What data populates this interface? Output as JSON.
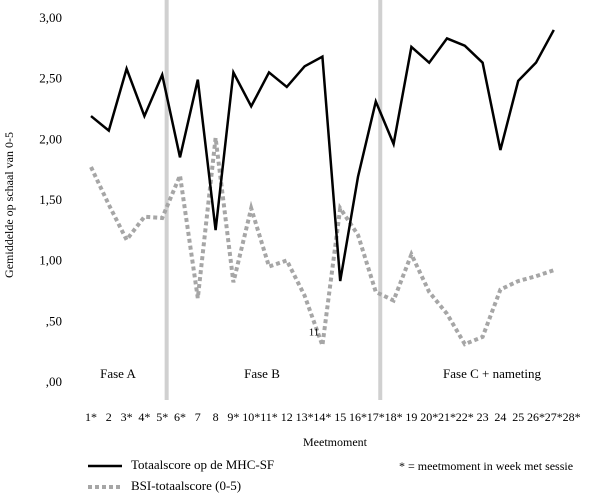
{
  "chart_data": {
    "type": "line",
    "x_label": "Meetmoment",
    "y_label": "Gemiddelde op schaal van 0-5",
    "categories": [
      "1*",
      "2",
      "3*",
      "4*",
      "5*",
      "6*",
      "7",
      "8",
      "9*",
      "10*",
      "11*",
      "12",
      "13*",
      "14*",
      "15",
      "16*",
      "17*",
      "18*",
      "19",
      "20*",
      "21*",
      "22*",
      "23",
      "24",
      "25",
      "26*",
      "27*",
      "28*"
    ],
    "series": [
      {
        "name": "Totaalscore op de MHC-SF",
        "color": "#000000",
        "dashed": false,
        "values": [
          2.2,
          2.08,
          2.59,
          2.2,
          2.54,
          1.86,
          2.5,
          1.26,
          2.56,
          2.28,
          2.56,
          2.44,
          2.61,
          2.69,
          0.84,
          1.7,
          2.32,
          1.97,
          2.77,
          2.64,
          2.84,
          2.78,
          2.64,
          1.92,
          2.49,
          2.64,
          2.91,
          null
        ]
      },
      {
        "name": "BSI-totaalscore (0-5)",
        "color": "#a6a6a6",
        "dashed": true,
        "values": [
          1.78,
          1.47,
          1.18,
          1.37,
          1.36,
          1.71,
          0.7,
          2.02,
          0.83,
          1.44,
          0.96,
          1.01,
          0.72,
          0.31,
          1.44,
          1.22,
          0.75,
          0.68,
          1.06,
          0.75,
          0.57,
          0.32,
          0.38,
          0.77,
          0.84,
          0.88,
          0.93,
          null
        ]
      }
    ],
    "ylim": [
      0,
      3
    ],
    "yticks": [
      {
        "value": 0,
        "label": ",00"
      },
      {
        "value": 0.5,
        "label": ",50"
      },
      {
        "value": 1,
        "label": "1,00"
      },
      {
        "value": 1.5,
        "label": "1,50"
      },
      {
        "value": 2,
        "label": "2,00"
      },
      {
        "value": 2.5,
        "label": "2,50"
      },
      {
        "value": 3,
        "label": "3,00"
      }
    ],
    "grid": false,
    "phases": [
      "Fase A",
      "Fase B",
      "Fase C + nameting"
    ],
    "annotations": [
      "11"
    ],
    "footnote": "* = meetmoment in week met sessie"
  }
}
